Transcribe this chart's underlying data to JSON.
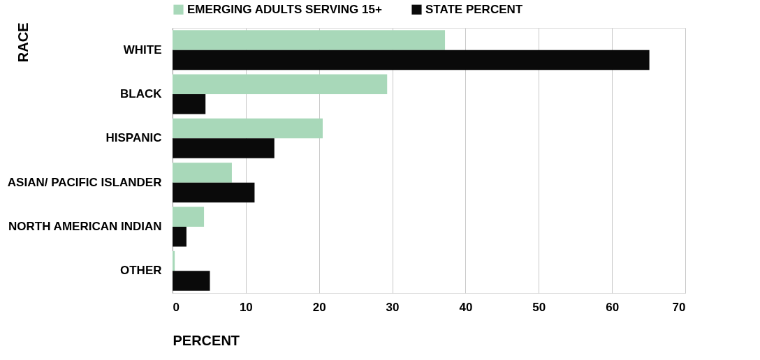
{
  "chart_data": {
    "type": "bar",
    "orientation": "horizontal",
    "ylabel": "RACE",
    "xlabel": "PERCENT",
    "categories": [
      "WHITE",
      "BLACK",
      "HISPANIC",
      "ASIAN/ PACIFIC ISLANDER",
      "NORTH AMERICAN INDIAN",
      "OTHER"
    ],
    "series": [
      {
        "name": "EMERGING ADULTS SERVING 15+",
        "color": "#a8d8b9",
        "values": [
          37.2,
          29.3,
          20.5,
          8.1,
          4.3,
          0.3
        ]
      },
      {
        "name": "STATE PERCENT",
        "color": "#0a0a0a",
        "values": [
          65.1,
          4.5,
          13.9,
          11.2,
          1.9,
          5.1
        ]
      }
    ],
    "xlim": [
      0,
      70
    ],
    "xticks": [
      0,
      10,
      20,
      30,
      40,
      50,
      60,
      70
    ],
    "grid": "x",
    "legend": "top"
  }
}
